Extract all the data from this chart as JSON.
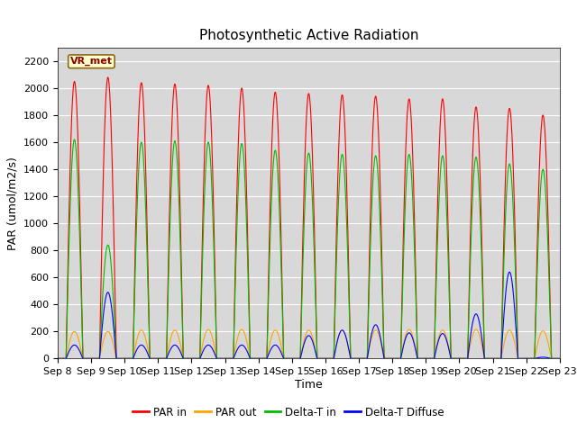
{
  "title": "Photosynthetic Active Radiation",
  "ylabel": "PAR (umol/m2/s)",
  "xlabel": "Time",
  "annotation": "VR_met",
  "n_days": 15,
  "ylim": [
    0,
    2300
  ],
  "yticks": [
    0,
    200,
    400,
    600,
    800,
    1000,
    1200,
    1400,
    1600,
    1800,
    2000,
    2200
  ],
  "x_tick_labels": [
    "Sep 8",
    "Sep 9",
    "Sep 10",
    "Sep 11",
    "Sep 12",
    "Sep 13",
    "Sep 14",
    "Sep 15",
    "Sep 16",
    "Sep 17",
    "Sep 18",
    "Sep 19",
    "Sep 20",
    "Sep 21",
    "Sep 22",
    "Sep 23"
  ],
  "colors": {
    "PAR_in": "#FF0000",
    "PAR_out": "#FFA500",
    "Delta_T_in": "#00BB00",
    "Delta_T_Diffuse": "#0000FF"
  },
  "legend_labels": [
    "PAR in",
    "PAR out",
    "Delta-T in",
    "Delta-T Diffuse"
  ],
  "background_color": "#D8D8D8",
  "title_fontsize": 11,
  "axis_label_fontsize": 9,
  "tick_fontsize": 8,
  "par_in_peaks": [
    2050,
    2080,
    2040,
    2030,
    2020,
    2000,
    1970,
    1960,
    1950,
    1940,
    1920,
    1920,
    1860,
    1850,
    1800
  ],
  "par_out_peaks": [
    200,
    200,
    210,
    210,
    215,
    215,
    210,
    210,
    210,
    210,
    215,
    210,
    215,
    210,
    205
  ],
  "dt_in_peaks": [
    1620,
    840,
    1600,
    1610,
    1600,
    1590,
    1540,
    1520,
    1510,
    1500,
    1510,
    1500,
    1490,
    1440,
    1400
  ],
  "dt_diffuse_peaks": [
    100,
    490,
    100,
    100,
    100,
    100,
    100,
    170,
    210,
    250,
    190,
    185,
    330,
    640,
    10
  ]
}
